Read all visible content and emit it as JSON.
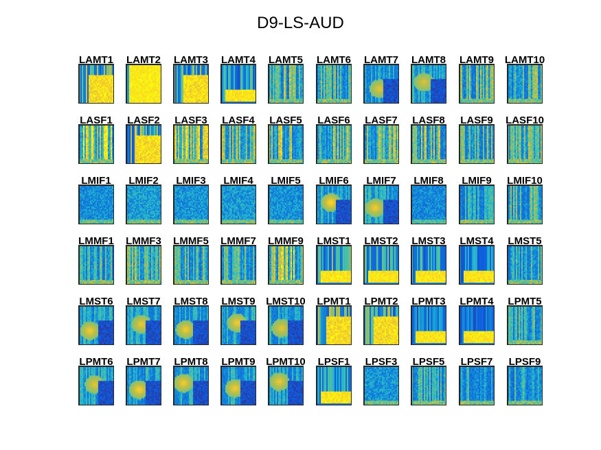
{
  "chart_data": {
    "type": "heatmap",
    "title": "D9-LS-AUD",
    "grid_rows": 6,
    "grid_cols": 10,
    "colormap": "parula",
    "colors": {
      "low": "#352a87",
      "mid": "#1fb3d3",
      "high": "#f9fb0e"
    },
    "panels": [
      {
        "label": "LAMT1",
        "pattern": "sat_block",
        "intensity": 0.85,
        "seed": 11
      },
      {
        "label": "LAMT2",
        "pattern": "full",
        "intensity": 0.97,
        "seed": 12
      },
      {
        "label": "LAMT3",
        "pattern": "sat_block",
        "intensity": 0.8,
        "seed": 13
      },
      {
        "label": "LAMT4",
        "pattern": "low_band",
        "intensity": 0.75,
        "seed": 14
      },
      {
        "label": "LAMT5",
        "pattern": "stripes",
        "intensity": 0.65,
        "seed": 15
      },
      {
        "label": "LAMT6",
        "pattern": "stripes",
        "intensity": 0.55,
        "seed": 16
      },
      {
        "label": "LAMT7",
        "pattern": "blob",
        "intensity": 0.5,
        "seed": 17
      },
      {
        "label": "LAMT8",
        "pattern": "blob",
        "intensity": 0.45,
        "seed": 18
      },
      {
        "label": "LAMT9",
        "pattern": "stripes",
        "intensity": 0.6,
        "seed": 19
      },
      {
        "label": "LAMT10",
        "pattern": "stripes",
        "intensity": 0.6,
        "seed": 20
      },
      {
        "label": "LASF1",
        "pattern": "stripes",
        "intensity": 0.8,
        "seed": 21
      },
      {
        "label": "LASF2",
        "pattern": "sat_block",
        "intensity": 0.9,
        "seed": 22
      },
      {
        "label": "LASF3",
        "pattern": "stripes",
        "intensity": 0.75,
        "seed": 23
      },
      {
        "label": "LASF4",
        "pattern": "stripes",
        "intensity": 0.7,
        "seed": 24
      },
      {
        "label": "LASF5",
        "pattern": "stripes",
        "intensity": 0.7,
        "seed": 25
      },
      {
        "label": "LASF6",
        "pattern": "stripes",
        "intensity": 0.65,
        "seed": 26
      },
      {
        "label": "LASF7",
        "pattern": "stripes",
        "intensity": 0.65,
        "seed": 27
      },
      {
        "label": "LASF8",
        "pattern": "stripes",
        "intensity": 0.65,
        "seed": 28
      },
      {
        "label": "LASF9",
        "pattern": "stripes",
        "intensity": 0.6,
        "seed": 29
      },
      {
        "label": "LASF10",
        "pattern": "stripes",
        "intensity": 0.6,
        "seed": 30
      },
      {
        "label": "LMIF1",
        "pattern": "diffuse",
        "intensity": 0.3,
        "seed": 31
      },
      {
        "label": "LMIF2",
        "pattern": "diffuse",
        "intensity": 0.5,
        "seed": 32
      },
      {
        "label": "LMIF3",
        "pattern": "diffuse",
        "intensity": 0.4,
        "seed": 33
      },
      {
        "label": "LMIF4",
        "pattern": "diffuse",
        "intensity": 0.45,
        "seed": 34
      },
      {
        "label": "LMIF5",
        "pattern": "diffuse",
        "intensity": 0.35,
        "seed": 35
      },
      {
        "label": "LMIF6",
        "pattern": "blob",
        "intensity": 0.7,
        "seed": 36
      },
      {
        "label": "LMIF7",
        "pattern": "blob",
        "intensity": 0.6,
        "seed": 37
      },
      {
        "label": "LMIF8",
        "pattern": "diffuse",
        "intensity": 0.25,
        "seed": 38
      },
      {
        "label": "LMIF9",
        "pattern": "stripes",
        "intensity": 0.4,
        "seed": 39
      },
      {
        "label": "LMIF10",
        "pattern": "stripes",
        "intensity": 0.6,
        "seed": 40
      },
      {
        "label": "LMMF1",
        "pattern": "stripes",
        "intensity": 0.5,
        "seed": 41
      },
      {
        "label": "LMMF3",
        "pattern": "stripes",
        "intensity": 0.6,
        "seed": 42
      },
      {
        "label": "LMMF5",
        "pattern": "stripes",
        "intensity": 0.55,
        "seed": 43
      },
      {
        "label": "LMMF7",
        "pattern": "stripes",
        "intensity": 0.55,
        "seed": 44
      },
      {
        "label": "LMMF9",
        "pattern": "stripes",
        "intensity": 0.75,
        "seed": 45
      },
      {
        "label": "LMST1",
        "pattern": "low_band",
        "intensity": 0.85,
        "seed": 46
      },
      {
        "label": "LMST2",
        "pattern": "low_band",
        "intensity": 0.85,
        "seed": 47
      },
      {
        "label": "LMST3",
        "pattern": "low_band",
        "intensity": 0.8,
        "seed": 48
      },
      {
        "label": "LMST4",
        "pattern": "low_band",
        "intensity": 0.6,
        "seed": 49
      },
      {
        "label": "LMST5",
        "pattern": "stripes",
        "intensity": 0.5,
        "seed": 50
      },
      {
        "label": "LMST6",
        "pattern": "blob",
        "intensity": 0.6,
        "seed": 51
      },
      {
        "label": "LMST7",
        "pattern": "blob",
        "intensity": 0.55,
        "seed": 52
      },
      {
        "label": "LMST8",
        "pattern": "blob",
        "intensity": 0.6,
        "seed": 53
      },
      {
        "label": "LMST9",
        "pattern": "blob",
        "intensity": 0.6,
        "seed": 54
      },
      {
        "label": "LMST10",
        "pattern": "blob",
        "intensity": 0.5,
        "seed": 55
      },
      {
        "label": "LPMT1",
        "pattern": "sat_block",
        "intensity": 0.85,
        "seed": 56
      },
      {
        "label": "LPMT2",
        "pattern": "sat_block",
        "intensity": 0.8,
        "seed": 57
      },
      {
        "label": "LPMT3",
        "pattern": "low_band",
        "intensity": 0.6,
        "seed": 58
      },
      {
        "label": "LPMT4",
        "pattern": "low_band",
        "intensity": 0.5,
        "seed": 59
      },
      {
        "label": "LPMT5",
        "pattern": "stripes",
        "intensity": 0.5,
        "seed": 60
      },
      {
        "label": "LPMT6",
        "pattern": "blob",
        "intensity": 0.5,
        "seed": 61
      },
      {
        "label": "LPMT7",
        "pattern": "blob",
        "intensity": 0.65,
        "seed": 62
      },
      {
        "label": "LPMT8",
        "pattern": "blob",
        "intensity": 0.6,
        "seed": 63
      },
      {
        "label": "LPMT9",
        "pattern": "blob",
        "intensity": 0.6,
        "seed": 64
      },
      {
        "label": "LPMT10",
        "pattern": "blob",
        "intensity": 0.55,
        "seed": 65
      },
      {
        "label": "LPSF1",
        "pattern": "low_band",
        "intensity": 0.7,
        "seed": 66
      },
      {
        "label": "LPSF3",
        "pattern": "diffuse",
        "intensity": 0.4,
        "seed": 67
      },
      {
        "label": "LPSF5",
        "pattern": "stripes",
        "intensity": 0.5,
        "seed": 68
      },
      {
        "label": "LPSF7",
        "pattern": "stripes",
        "intensity": 0.45,
        "seed": 69
      },
      {
        "label": "LPSF9",
        "pattern": "stripes",
        "intensity": 0.45,
        "seed": 70
      }
    ]
  }
}
